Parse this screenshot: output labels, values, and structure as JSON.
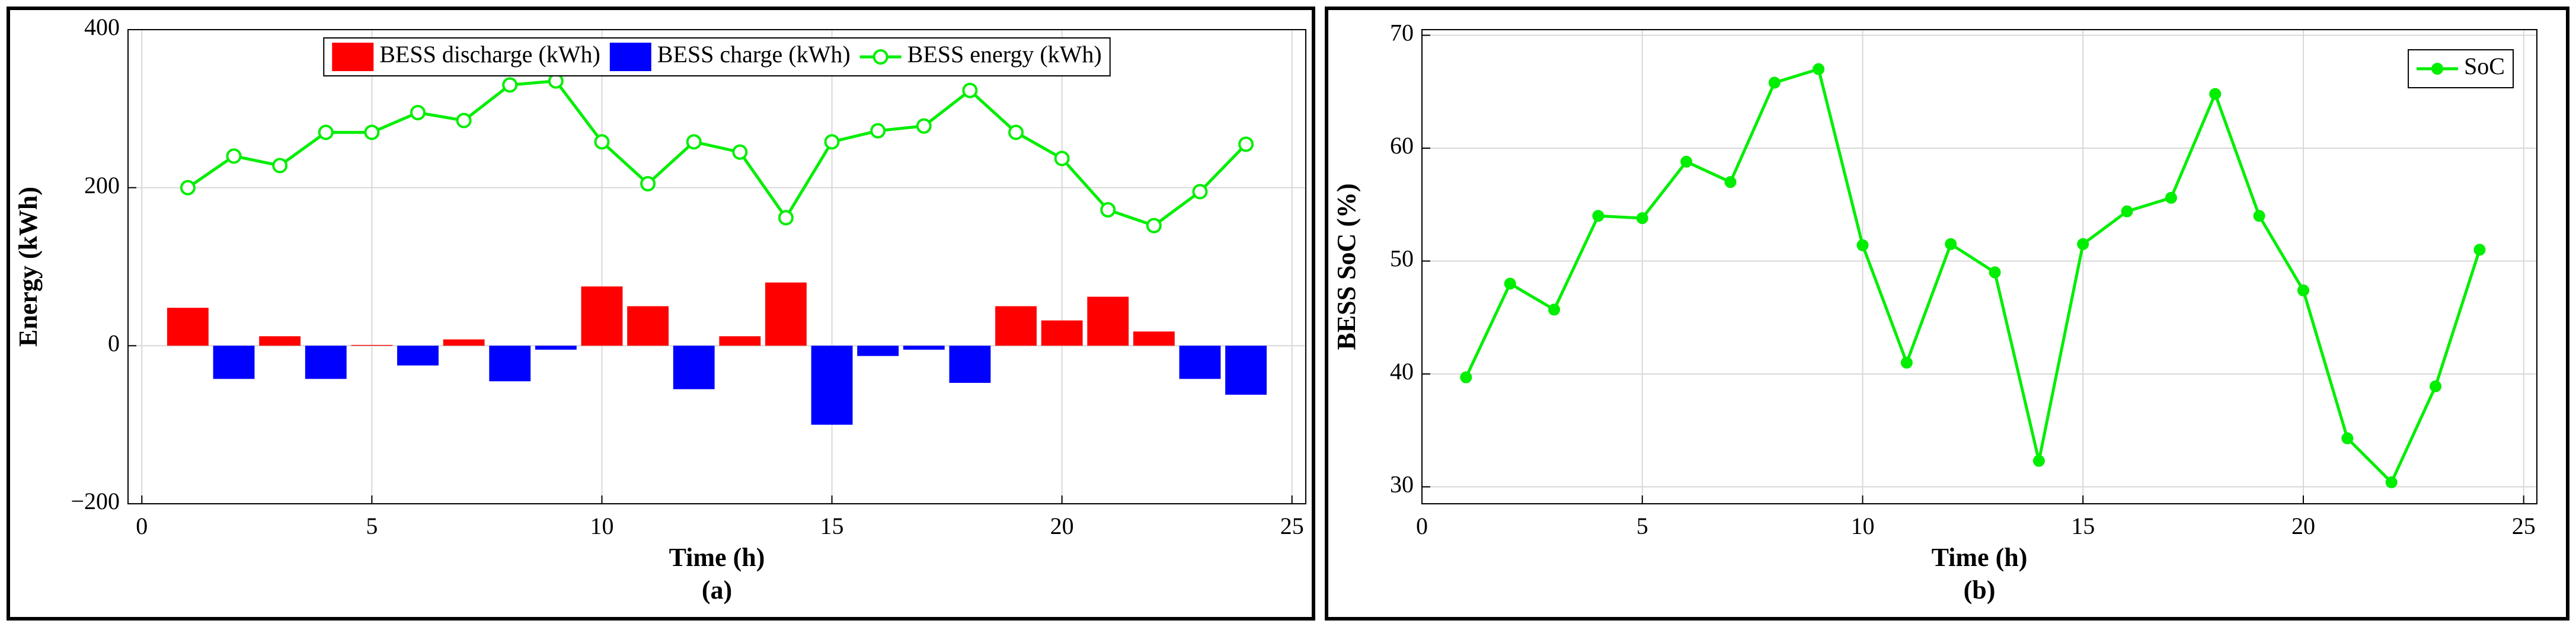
{
  "chart_data": [
    {
      "type": "bar",
      "xlabel": "Time (h)",
      "ylabel": "Energy (kWh)",
      "caption": "(a)",
      "x": [
        1,
        2,
        3,
        4,
        5,
        6,
        7,
        8,
        9,
        10,
        11,
        12,
        13,
        14,
        15,
        16,
        17,
        18,
        19,
        20,
        21,
        22,
        23,
        24
      ],
      "xlim": [
        -0.3,
        25.3
      ],
      "xticks": [
        0,
        5,
        10,
        15,
        20,
        25
      ],
      "ylim": [
        -200,
        400
      ],
      "yticks": [
        {
          "value": -200,
          "label": "−200"
        },
        0,
        200,
        400
      ],
      "grid": true,
      "legend": "upper center",
      "series": [
        {
          "name": "BESS discharge (kWh)",
          "color": "#ff0000",
          "type": "bar",
          "values": [
            48,
            0,
            12,
            0,
            1,
            0,
            8,
            0,
            0,
            75,
            50,
            0,
            12,
            80,
            0,
            0,
            0,
            0,
            50,
            32,
            62,
            18,
            0,
            0
          ]
        },
        {
          "name": "BESS charge (kWh)",
          "color": "#0000ff",
          "type": "bar",
          "values": [
            0,
            -42,
            0,
            -42,
            0,
            -25,
            0,
            -45,
            -5,
            0,
            0,
            -55,
            0,
            0,
            -100,
            -13,
            -5,
            -47,
            0,
            0,
            0,
            0,
            -42,
            -62
          ]
        },
        {
          "name": "BESS energy (kWh)",
          "color": "#00ee00",
          "type": "line",
          "marker": "open-circle",
          "values": [
            200,
            240,
            228,
            270,
            270,
            295,
            285,
            330,
            335,
            258,
            205,
            258,
            245,
            162,
            258,
            272,
            278,
            323,
            270,
            237,
            172,
            152,
            195,
            255
          ]
        }
      ]
    },
    {
      "type": "line",
      "xlabel": "Time (h)",
      "ylabel": "BESS SoC (%)",
      "caption": "(b)",
      "x": [
        1,
        2,
        3,
        4,
        5,
        6,
        7,
        8,
        9,
        10,
        11,
        12,
        13,
        14,
        15,
        16,
        17,
        18,
        19,
        20,
        21,
        22,
        23,
        24
      ],
      "xlim": [
        0,
        25.3
      ],
      "xticks": [
        0,
        5,
        10,
        15,
        20,
        25
      ],
      "ylim": [
        28.5,
        70.5
      ],
      "yticks": [
        30,
        40,
        50,
        60,
        70
      ],
      "grid": true,
      "legend": "upper right",
      "series": [
        {
          "name": "SoC",
          "color": "#00ee00",
          "type": "line",
          "marker": "dot",
          "values": [
            39.7,
            48,
            45.7,
            54,
            53.8,
            58.8,
            57,
            65.8,
            67,
            51.4,
            41,
            51.5,
            49,
            32.3,
            51.5,
            54.4,
            55.6,
            64.8,
            54,
            47.4,
            34.3,
            30.4,
            38.9,
            51
          ]
        }
      ]
    }
  ]
}
